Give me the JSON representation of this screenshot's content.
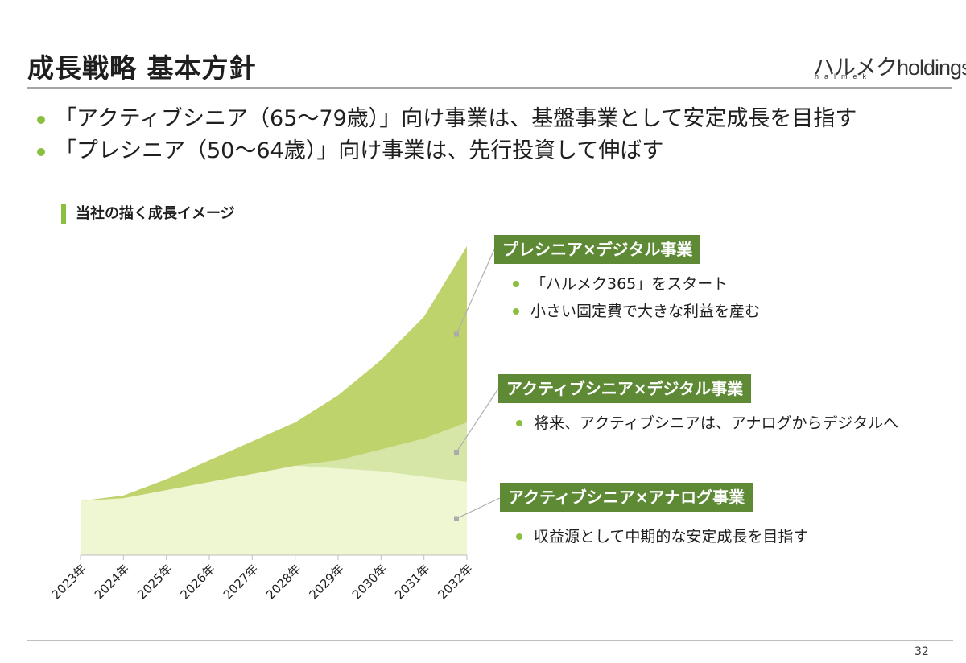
{
  "header": {
    "title": "成長戦略 基本方針",
    "logo_main": "ハルメクholdings",
    "logo_sub": "halmek"
  },
  "bullets": [
    "「アクティブシニア（65～79歳）」向け事業は、基盤事業として安定成長を目指す",
    "「プレシニア（50～64歳）」向け事業は、先行投資して伸ばす"
  ],
  "section_title": "当社の描く成長イメージ",
  "panels": [
    {
      "label": "プレシニア×デジタル事業",
      "items": [
        "「ハルメク365」をスタート",
        "小さい固定費で大きな利益を産む"
      ]
    },
    {
      "label": "アクティブシニア×デジタル事業",
      "items": [
        "将来、アクティブシニアは、アナログからデジタルへ"
      ]
    },
    {
      "label": "アクティブシニア×アナログ事業",
      "items": [
        "収益源として中期的な安定成長を目指す"
      ]
    }
  ],
  "chart_data": {
    "type": "area",
    "stacked": true,
    "categories": [
      "2023年",
      "2024年",
      "2025年",
      "2026年",
      "2027年",
      "2028年",
      "2029年",
      "2030年",
      "2031年",
      "2032年"
    ],
    "series": [
      {
        "name": "アクティブシニア×アナログ事業",
        "values": [
          20,
          21,
          24,
          27,
          30,
          33,
          32,
          31,
          29,
          27
        ],
        "color": "#eef6d2"
      },
      {
        "name": "アクティブシニア×デジタル事業",
        "values": [
          0,
          0,
          0,
          0,
          0,
          0,
          3,
          8,
          14,
          22
        ],
        "color": "#d6e6a6"
      },
      {
        "name": "プレシニア×デジタル事業",
        "values": [
          0,
          1,
          4,
          8,
          12,
          16,
          24,
          33,
          45,
          65
        ],
        "color": "#bed36b"
      }
    ],
    "ylim": [
      0,
      114
    ],
    "grid": false,
    "legend": "callouts at right"
  },
  "footer": {
    "page": "32"
  }
}
